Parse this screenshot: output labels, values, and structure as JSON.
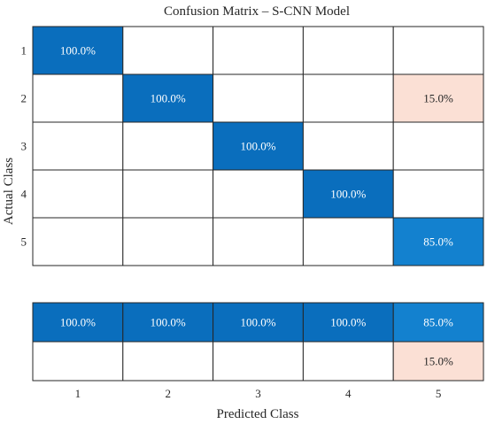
{
  "chart_data": {
    "type": "heatmap",
    "title": "Confusion Matrix – S-CNN Model",
    "xlabel": "Predicted Class",
    "ylabel": "Actual Class",
    "x_categories": [
      "1",
      "2",
      "3",
      "4",
      "5"
    ],
    "y_categories": [
      "1",
      "2",
      "3",
      "4",
      "5"
    ],
    "matrix": [
      [
        "100.0%",
        "",
        "",
        "",
        ""
      ],
      [
        "",
        "100.0%",
        "",
        "",
        "15.0%"
      ],
      [
        "",
        "",
        "100.0%",
        "",
        ""
      ],
      [
        "",
        "",
        "",
        "100.0%",
        ""
      ],
      [
        "",
        "",
        "",
        "",
        "85.0%"
      ]
    ],
    "matrix_values": [
      [
        100,
        0,
        0,
        0,
        0
      ],
      [
        0,
        100,
        0,
        0,
        15
      ],
      [
        0,
        0,
        100,
        0,
        0
      ],
      [
        0,
        0,
        0,
        100,
        0
      ],
      [
        0,
        0,
        0,
        0,
        85
      ]
    ],
    "summary_rows": [
      [
        "100.0%",
        "100.0%",
        "100.0%",
        "100.0%",
        "85.0%"
      ],
      [
        "",
        "",
        "",
        "",
        "15.0%"
      ]
    ],
    "summary_values": [
      [
        100,
        100,
        100,
        100,
        85
      ],
      [
        0,
        0,
        0,
        0,
        15
      ]
    ],
    "colors": {
      "correct_full": "#0a6ebd",
      "correct_partial": "#1381cf",
      "error": "#fbe0d5",
      "empty": "#ffffff",
      "grid": "#262626",
      "text_on_dark": "#ffffff",
      "text_on_light": "#262626"
    }
  }
}
